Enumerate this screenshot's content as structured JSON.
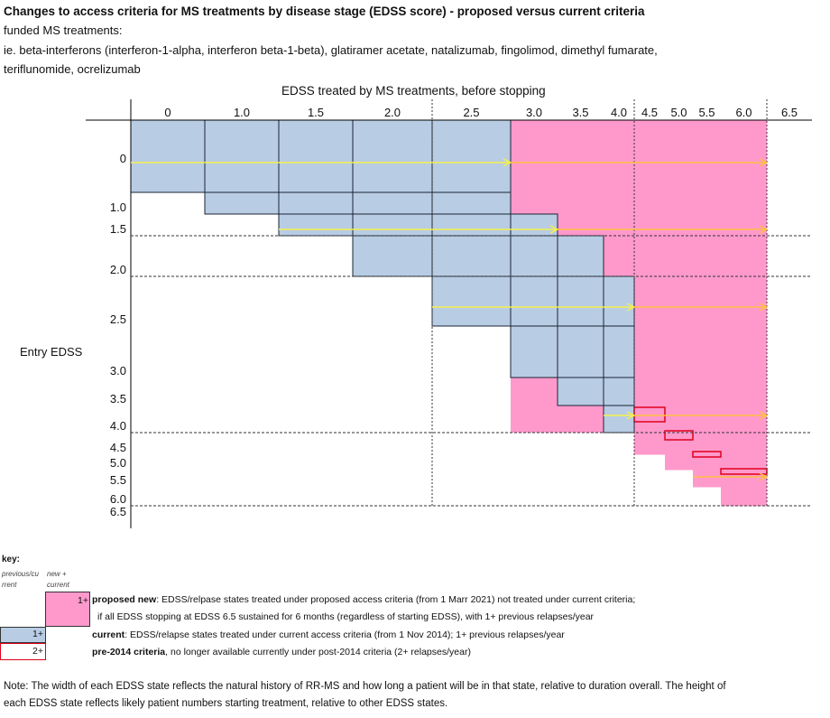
{
  "title": "Changes to access criteria for MS treatments by disease stage (EDSS score) - proposed versus current criteria",
  "subtitle1": "funded MS treatments:",
  "subtitle2": "ie. beta-interferons (interferon-1-alpha, interferon beta-1-beta), glatiramer acetate, natalizumab, fingolimod, dimethyl fumarate,",
  "subtitle3": "teriflunomide, ocrelizumab",
  "colors": {
    "current": "#b8cce4",
    "proposed": "#ff99cc",
    "pre2014": "#e0001b",
    "arrow": "#f5f04a",
    "arrow2": "#ffc040"
  },
  "chart_data": {
    "type": "diagram",
    "xlabel": "EDSS treated by MS treatments, before stopping",
    "ylabel": "Entry EDSS",
    "columns": [
      "0",
      "1.0",
      "1.5",
      "2.0",
      "2.5",
      "3.0",
      "3.5",
      "4.0",
      "4.5",
      "5.0",
      "5.5",
      "6.0",
      "6.5"
    ],
    "rows": [
      "0",
      "1.0",
      "1.5",
      "2.0",
      "2.5",
      "3.0",
      "3.5",
      "4.0",
      "4.5",
      "5.0",
      "5.5",
      "6.0",
      "6.5"
    ],
    "current_cells": [
      {
        "row": "0",
        "from": "0",
        "to": "2.5"
      },
      {
        "row": "1.0",
        "from": "1.0",
        "to": "2.5"
      },
      {
        "row": "1.5",
        "from": "1.5",
        "to": "3.0"
      },
      {
        "row": "2.0",
        "from": "2.0",
        "to": "3.5"
      },
      {
        "row": "2.5",
        "from": "2.5",
        "to": "4.0"
      },
      {
        "row": "3.0",
        "from": "3.0",
        "to": "4.0"
      },
      {
        "row": "3.5",
        "from": "3.5",
        "to": "4.0"
      },
      {
        "row": "4.0",
        "from": "4.0",
        "to": "4.0"
      }
    ],
    "proposed_region": "all EDSS states up to 6.0 not covered by current criteria, for entry EDSS 0-4.0 from 3.0 onward, and entry 4.5-6.0 from the next state onward",
    "pre2014_cells": [
      {
        "row": "4.0",
        "col": "4.5"
      },
      {
        "row": "4.5",
        "col": "5.0"
      },
      {
        "row": "5.0",
        "col": "5.5"
      },
      {
        "row": "5.5",
        "col": "6.0"
      }
    ],
    "arrows_from_rows": [
      "0",
      "1.5",
      "2.5",
      "4.0",
      "5.5"
    ]
  },
  "key": {
    "heading": "key:",
    "col1": "previous/cu rrent",
    "col2": "new + current",
    "proposed_badge": "1+",
    "proposed_bold": "proposed new",
    "proposed_text": ": EDSS/relpase states treated under proposed access criteria (from 1 Marr 2021) not treated under current criteria;",
    "proposed_text2": "if all EDSS stopping at EDSS 6.5 sustained for 6 months (regardless of starting EDSS), with 1+ previous relapses/year",
    "current_badge": "1+",
    "current_bold": "current",
    "current_text": ": EDSS/relapse states treated under current access criteria (from 1 Nov 2014); 1+ previous relapses/year",
    "pre_badge": "2+",
    "pre_bold": "pre-2014 criteria",
    "pre_text": ", no longer available currently under post-2014 criteria (2+ relapses/year)"
  },
  "note1": "Note: The width of each EDSS state reflects the natural history of RR-MS and how long a patient will be in that state, relative to duration overall. The height of",
  "note2": "each EDSS state reflects likely patient numbers starting treatment, relative to other EDSS states."
}
